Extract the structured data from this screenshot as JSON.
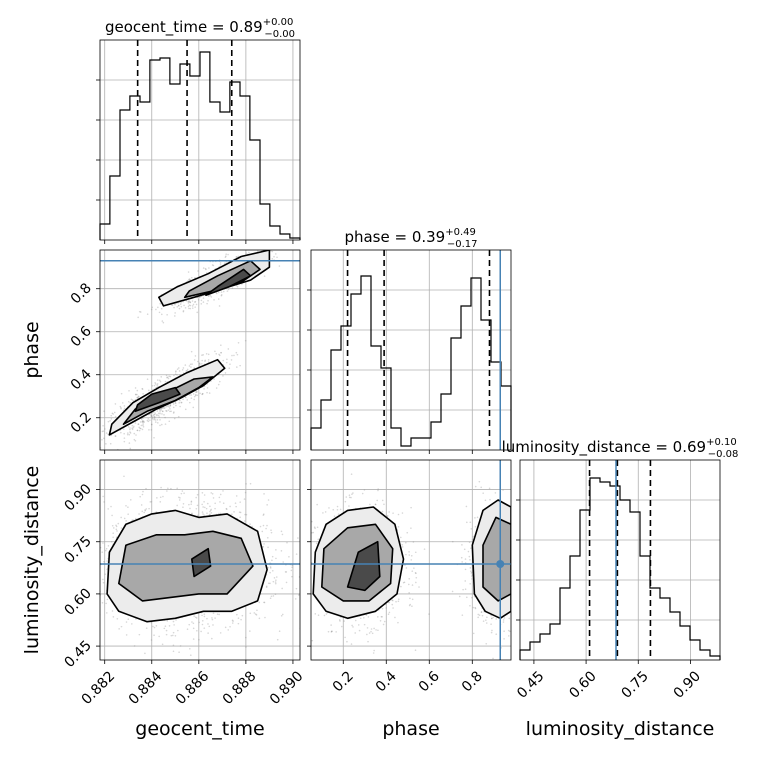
{
  "chart_data": {
    "type": "corner",
    "parameters": [
      "geocent_time",
      "phase",
      "luminosity_distance"
    ],
    "axis_labels": {
      "x": [
        "geocent_time",
        "phase",
        "luminosity_distance"
      ],
      "y": [
        "",
        "phase",
        "luminosity_distance"
      ]
    },
    "titles": [
      {
        "name": "geocent_time",
        "median": "0.89",
        "plus": "+0.00",
        "minus": "−0.00"
      },
      {
        "name": "phase",
        "median": "0.39",
        "plus": "+0.49",
        "minus": "−0.17"
      },
      {
        "name": "luminosity_distance",
        "median": "0.69",
        "plus": "+0.10",
        "minus": "−0.08"
      }
    ],
    "ranges": {
      "geocent_time": [
        0.8818,
        0.8903
      ],
      "phase": [
        0.05,
        0.98
      ],
      "luminosity_distance": [
        0.41,
        0.985
      ]
    },
    "ticks": {
      "geocent_time": {
        "values": [
          0.882,
          0.884,
          0.886,
          0.888,
          0.89
        ],
        "labels": [
          "0.882",
          "0.884",
          "0.886",
          "0.888",
          "0.890"
        ]
      },
      "phase": {
        "values": [
          0.2,
          0.4,
          0.6,
          0.8
        ],
        "labels": [
          "0.2",
          "0.4",
          "0.6",
          "0.8"
        ]
      },
      "luminosity_distance": {
        "values": [
          0.45,
          0.6,
          0.75,
          0.9
        ],
        "labels": [
          "0.45",
          "0.60",
          "0.75",
          "0.90"
        ]
      }
    },
    "truths": {
      "phase": 0.93,
      "luminosity_distance": 0.686
    },
    "quantiles": {
      "geocent_time": [
        0.8834,
        0.8855,
        0.8874
      ],
      "phase": [
        0.22,
        0.39,
        0.88
      ],
      "luminosity_distance": [
        0.61,
        0.69,
        0.785
      ]
    },
    "histograms": {
      "geocent_time": {
        "edges": [
          0.8818,
          0.88222,
          0.88265,
          0.88307,
          0.8835,
          0.88392,
          0.88435,
          0.88477,
          0.8852,
          0.88562,
          0.88605,
          0.88647,
          0.8869,
          0.88732,
          0.88775,
          0.88817,
          0.8886,
          0.88902,
          0.88945,
          0.88987,
          0.8903
        ],
        "counts": [
          0.08,
          0.32,
          0.65,
          0.72,
          0.69,
          0.9,
          0.91,
          0.78,
          0.88,
          0.82,
          0.94,
          0.69,
          0.64,
          0.79,
          0.72,
          0.5,
          0.18,
          0.07,
          0.03,
          0.01
        ]
      },
      "phase": {
        "edges": [
          0.05,
          0.0965,
          0.143,
          0.1895,
          0.236,
          0.2825,
          0.329,
          0.3755,
          0.422,
          0.4685,
          0.515,
          0.5615,
          0.608,
          0.6545,
          0.701,
          0.7475,
          0.794,
          0.8405,
          0.887,
          0.9335,
          0.98
        ],
        "counts": [
          0.11,
          0.25,
          0.5,
          0.62,
          0.78,
          0.87,
          0.52,
          0.41,
          0.11,
          0.02,
          0.06,
          0.06,
          0.14,
          0.28,
          0.56,
          0.72,
          0.86,
          0.65,
          0.44,
          0.32
        ]
      },
      "luminosity_distance": {
        "edges": [
          0.41,
          0.43875,
          0.4675,
          0.49625,
          0.525,
          0.55375,
          0.5825,
          0.61125,
          0.64,
          0.66875,
          0.6975,
          0.72625,
          0.755,
          0.78375,
          0.8125,
          0.84125,
          0.87,
          0.89875,
          0.9275,
          0.95625,
          0.985
        ],
        "counts": [
          0.05,
          0.09,
          0.13,
          0.18,
          0.36,
          0.52,
          0.75,
          0.91,
          0.89,
          0.87,
          0.8,
          0.74,
          0.52,
          0.36,
          0.31,
          0.24,
          0.17,
          0.1,
          0.05,
          0.02
        ]
      }
    },
    "contours": {
      "phase_vs_geocent_time": [
        {
          "level": 1,
          "x": [
            0.8822,
            0.8832,
            0.8842,
            0.8852,
            0.8862,
            0.8871,
            0.8868,
            0.8855,
            0.8843,
            0.8832,
            0.8823
          ],
          "y": [
            0.12,
            0.18,
            0.24,
            0.29,
            0.35,
            0.43,
            0.47,
            0.41,
            0.34,
            0.27,
            0.17
          ]
        },
        {
          "level": 2,
          "x": [
            0.8828,
            0.8838,
            0.885,
            0.886,
            0.8866,
            0.8858,
            0.8845,
            0.8833
          ],
          "y": [
            0.17,
            0.23,
            0.28,
            0.34,
            0.39,
            0.38,
            0.31,
            0.24
          ]
        },
        {
          "level": 3,
          "x": [
            0.8833,
            0.8843,
            0.8852,
            0.885,
            0.884,
            0.8834
          ],
          "y": [
            0.23,
            0.27,
            0.31,
            0.34,
            0.31,
            0.26
          ]
        },
        {
          "level": 1,
          "x": [
            0.8845,
            0.8858,
            0.887,
            0.8882,
            0.889,
            0.889,
            0.8878,
            0.8864,
            0.8851,
            0.8843
          ],
          "y": [
            0.72,
            0.76,
            0.8,
            0.84,
            0.9,
            0.98,
            0.95,
            0.87,
            0.81,
            0.76
          ]
        },
        {
          "level": 2,
          "x": [
            0.8854,
            0.8866,
            0.8878,
            0.8886,
            0.8882,
            0.8868,
            0.8856
          ],
          "y": [
            0.76,
            0.79,
            0.83,
            0.89,
            0.93,
            0.86,
            0.79
          ]
        },
        {
          "level": 3,
          "x": [
            0.8863,
            0.8873,
            0.8882,
            0.8879,
            0.8868
          ],
          "y": [
            0.77,
            0.81,
            0.86,
            0.89,
            0.81
          ]
        }
      ],
      "luminosity_distance_vs_geocent_time": [
        {
          "level": 1,
          "x": [
            0.8821,
            0.8826,
            0.8838,
            0.885,
            0.8862,
            0.8874,
            0.8885,
            0.8889,
            0.8885,
            0.8872,
            0.886,
            0.885,
            0.884,
            0.8829,
            0.8822
          ],
          "y": [
            0.6,
            0.55,
            0.52,
            0.53,
            0.55,
            0.55,
            0.58,
            0.67,
            0.78,
            0.83,
            0.82,
            0.84,
            0.83,
            0.8,
            0.72
          ]
        },
        {
          "level": 2,
          "x": [
            0.8826,
            0.8836,
            0.8848,
            0.886,
            0.8872,
            0.8883,
            0.8878,
            0.8866,
            0.8854,
            0.8842,
            0.8829
          ],
          "y": [
            0.63,
            0.58,
            0.59,
            0.6,
            0.6,
            0.68,
            0.76,
            0.78,
            0.77,
            0.77,
            0.74
          ]
        },
        {
          "level": 3,
          "x": [
            0.8858,
            0.8865,
            0.8864,
            0.8857
          ],
          "y": [
            0.65,
            0.68,
            0.73,
            0.7
          ]
        }
      ],
      "luminosity_distance_vs_phase": [
        {
          "level": 1,
          "x": [
            0.06,
            0.12,
            0.22,
            0.35,
            0.45,
            0.48,
            0.44,
            0.34,
            0.22,
            0.12,
            0.07
          ],
          "y": [
            0.6,
            0.55,
            0.53,
            0.55,
            0.6,
            0.7,
            0.8,
            0.85,
            0.84,
            0.8,
            0.72
          ]
        },
        {
          "level": 2,
          "x": [
            0.1,
            0.2,
            0.32,
            0.42,
            0.43,
            0.35,
            0.22,
            0.11
          ],
          "y": [
            0.62,
            0.58,
            0.58,
            0.63,
            0.73,
            0.8,
            0.79,
            0.73
          ]
        },
        {
          "level": 3,
          "x": [
            0.22,
            0.3,
            0.37,
            0.36,
            0.27
          ],
          "y": [
            0.62,
            0.61,
            0.65,
            0.75,
            0.72
          ]
        },
        {
          "level": 1,
          "x": [
            0.81,
            0.86,
            0.93,
            0.98,
            0.98,
            0.92,
            0.85,
            0.8
          ],
          "y": [
            0.6,
            0.55,
            0.53,
            0.55,
            0.85,
            0.87,
            0.84,
            0.74
          ]
        },
        {
          "level": 2,
          "x": [
            0.85,
            0.92,
            0.98,
            0.98,
            0.91,
            0.85
          ],
          "y": [
            0.62,
            0.58,
            0.6,
            0.8,
            0.82,
            0.74
          ]
        }
      ]
    }
  }
}
